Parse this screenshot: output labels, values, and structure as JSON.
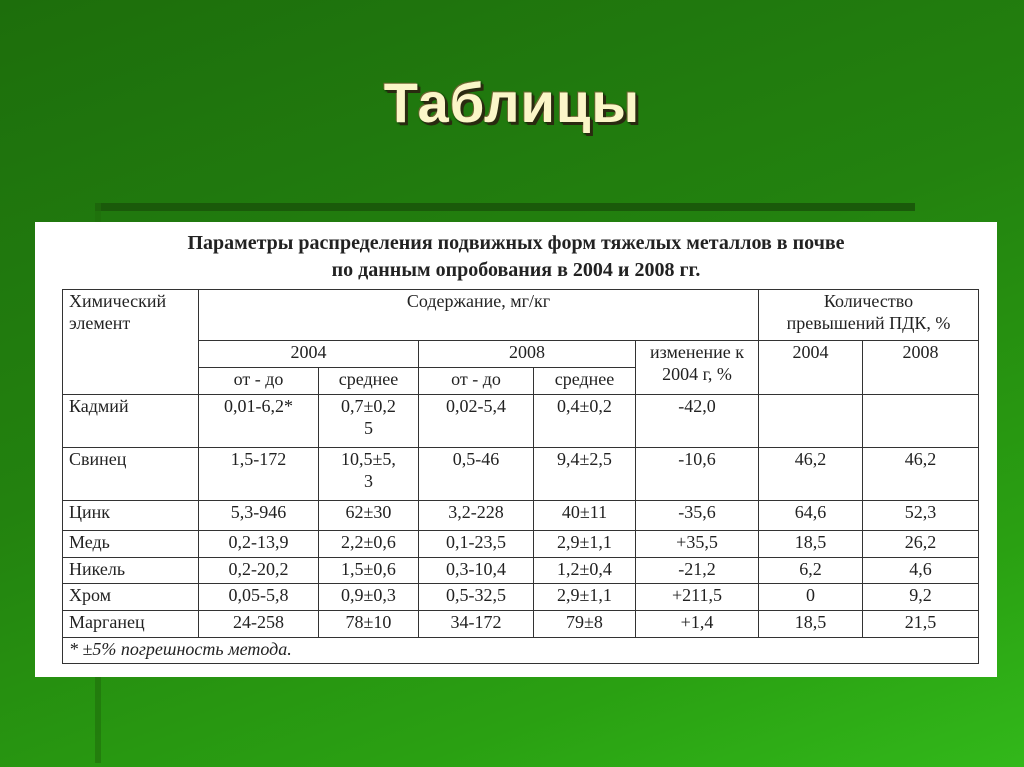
{
  "slide": {
    "title": "Таблицы"
  },
  "table": {
    "caption_line1": "Параметры распределения подвижных форм тяжелых металлов в почве",
    "caption_line2": "по данным опробования в 2004 и 2008 гг.",
    "headers": {
      "element": "Химический\nэлемент",
      "content": "Содержание, мг/кг",
      "exceedances": "Количество\nпревышений ПДК, %",
      "year_2004": "2004",
      "year_2008": "2008",
      "change": "изменение к\n2004 г, %",
      "exc_2004": "2004",
      "exc_2008": "2008",
      "range_2004": "от - до",
      "mean_2004": "среднее",
      "range_2008": "от - до",
      "mean_2008": "среднее"
    },
    "rows": [
      [
        "Кадмий",
        "0,01-6,2*",
        "0,7±0,2\n5",
        "0,02-5,4",
        "0,4±0,2",
        "-42,0",
        "",
        ""
      ],
      [
        "Свинец",
        "1,5-172",
        "10,5±5,\n3",
        "0,5-46",
        "9,4±2,5",
        "-10,6",
        "46,2",
        "46,2"
      ],
      [
        "Цинк",
        "5,3-946",
        "62±30",
        "3,2-228",
        "40±11",
        "-35,6",
        "64,6",
        "52,3"
      ],
      [
        "Медь",
        "0,2-13,9",
        "2,2±0,6",
        "0,1-23,5",
        "2,9±1,1",
        "+35,5",
        "18,5",
        "26,2"
      ],
      [
        "Никель",
        "0,2-20,2",
        "1,5±0,6",
        "0,3-10,4",
        "1,2±0,4",
        "-21,2",
        "6,2",
        "4,6"
      ],
      [
        "Хром",
        "0,05-5,8",
        "0,9±0,3",
        "0,5-32,5",
        "2,9±1,1",
        "+211,5",
        "0",
        "9,2"
      ],
      [
        "Марганец",
        "24-258",
        "78±10",
        "34-172",
        "79±8",
        "+1,4",
        "18,5",
        "21,5"
      ]
    ],
    "footnote": "* ±5% погрешность метода."
  }
}
